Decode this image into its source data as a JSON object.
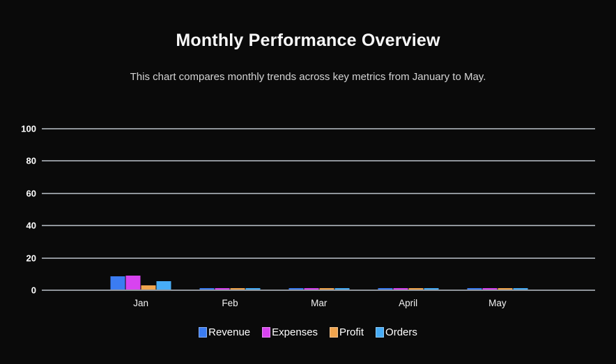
{
  "colors": {
    "background": "#0a0a0a",
    "grid": "#90959b",
    "title": "#f7f7f7",
    "subtitle": "#d4d4d4",
    "y_tick": "#ffffff",
    "x_tick": "#f2f2f2",
    "legend_text": "#ffffff"
  },
  "chart_data": {
    "type": "bar",
    "title": "Monthly Performance Overview",
    "subtitle": "This chart compares monthly trends across key metrics from January to May.",
    "categories": [
      "Jan",
      "Feb",
      "Mar",
      "April",
      "May"
    ],
    "series": [
      {
        "name": "Revenue",
        "color": "#3b7cf2",
        "values": [
          8,
          1,
          1,
          1,
          1
        ]
      },
      {
        "name": "Expenses",
        "color": "#d843f0",
        "values": [
          8.5,
          1,
          1,
          1,
          1
        ]
      },
      {
        "name": "Profit",
        "color": "#f0a44e",
        "values": [
          2.5,
          1,
          1,
          1,
          1
        ]
      },
      {
        "name": "Orders",
        "color": "#47acf7",
        "values": [
          5,
          1,
          1,
          1,
          1
        ]
      }
    ],
    "xlabel": "",
    "ylabel": "",
    "ylim": [
      0,
      100
    ],
    "yticks": [
      0,
      20,
      40,
      60,
      80,
      100
    ],
    "grid": true,
    "legend_position": "bottom"
  }
}
